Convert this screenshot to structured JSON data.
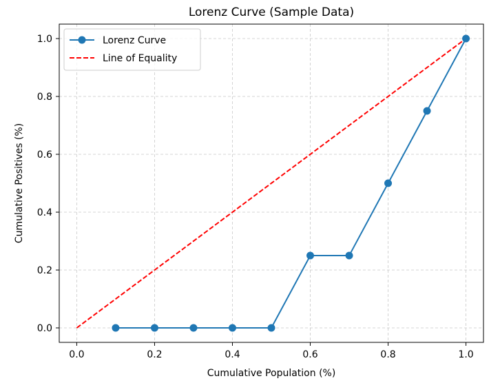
{
  "chart_data": {
    "type": "line",
    "title": "Lorenz Curve (Sample Data)",
    "xlabel": "Cumulative Population (%)",
    "ylabel": "Cumulative Positives (%)",
    "xlim": [
      -0.045,
      1.045
    ],
    "ylim": [
      -0.05,
      1.05
    ],
    "xticks": [
      0.0,
      0.2,
      0.4,
      0.6,
      0.8,
      1.0
    ],
    "yticks": [
      0.0,
      0.2,
      0.4,
      0.6,
      0.8,
      1.0
    ],
    "xtick_labels": [
      "0.0",
      "0.2",
      "0.4",
      "0.6",
      "0.8",
      "1.0"
    ],
    "ytick_labels": [
      "0.0",
      "0.2",
      "0.4",
      "0.6",
      "0.8",
      "1.0"
    ],
    "grid": true,
    "legend_position": "top-left",
    "series": [
      {
        "name": "Lorenz Curve",
        "style": "solid-markers",
        "color": "#1f77b4",
        "x": [
          0.1,
          0.2,
          0.3,
          0.4,
          0.5,
          0.6,
          0.7,
          0.8,
          0.9,
          1.0
        ],
        "y": [
          0.0,
          0.0,
          0.0,
          0.0,
          0.0,
          0.25,
          0.25,
          0.5,
          0.75,
          1.0
        ]
      },
      {
        "name": "Line of Equality",
        "style": "dashed",
        "color": "#ff0000",
        "x": [
          0.0,
          1.0
        ],
        "y": [
          0.0,
          1.0
        ]
      }
    ]
  }
}
